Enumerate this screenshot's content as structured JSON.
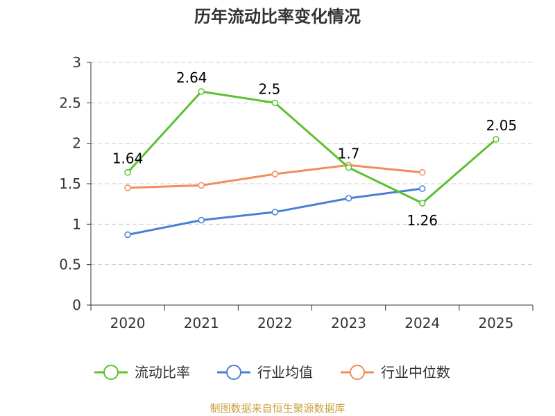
{
  "chart_data": {
    "type": "line",
    "title": "历年流动比率变化情况",
    "categories": [
      "2020",
      "2021",
      "2022",
      "2023",
      "2024",
      "2025"
    ],
    "ylim": [
      0,
      3
    ],
    "yticks": [
      "0",
      "0.5",
      "1",
      "1.5",
      "2",
      "2.5",
      "3"
    ],
    "grid": true,
    "legend_position": "bottom",
    "series": [
      {
        "name": "流动比率",
        "color": "#5cc12e",
        "values": [
          1.64,
          2.64,
          2.5,
          1.7,
          1.26,
          2.05
        ],
        "labels": [
          "1.64",
          "2.64",
          "2.5",
          "1.7",
          "1.26",
          "2.05"
        ]
      },
      {
        "name": "行业均值",
        "color": "#4a7ed6",
        "values": [
          0.87,
          1.05,
          1.15,
          1.32,
          1.44,
          null
        ]
      },
      {
        "name": "行业中位数",
        "color": "#f28c5a",
        "values": [
          1.45,
          1.48,
          1.62,
          1.73,
          1.64,
          null
        ]
      }
    ],
    "source": "制图数据来自恒生聚源数据库"
  }
}
